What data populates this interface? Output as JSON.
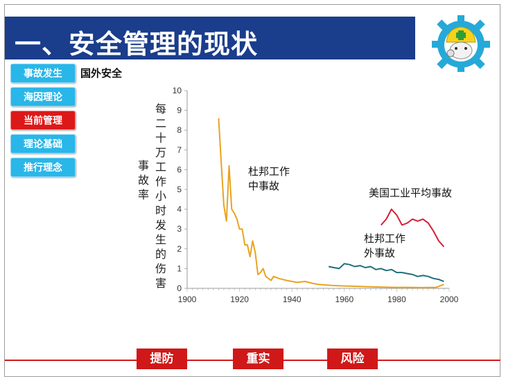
{
  "header": {
    "title": "一、安全管理的现状"
  },
  "nav": {
    "items": [
      {
        "label": "事故发生",
        "active": false
      },
      {
        "label": "海因理论",
        "active": false
      },
      {
        "label": "当前管理",
        "active": true
      },
      {
        "label": "理论基础",
        "active": false
      },
      {
        "label": "推行理念",
        "active": false
      }
    ]
  },
  "section": {
    "subtitle": "国外安全"
  },
  "colors": {
    "title_bg": "#1a3d8c",
    "nav_bg": "#29b6e8",
    "active": "#dc1818",
    "accent_red": "#d01818"
  },
  "chart_data": {
    "type": "line",
    "ylabel": "每二十万工作小时发生的伤害事故率",
    "xlabel": "",
    "xlim": [
      1900,
      2000
    ],
    "ylim": [
      0,
      10
    ],
    "xticks": [
      1900,
      1920,
      1940,
      1960,
      1980,
      2000
    ],
    "yticks": [
      0,
      1,
      2,
      3,
      4,
      5,
      6,
      7,
      8,
      9,
      10
    ],
    "grid": false,
    "series": [
      {
        "name": "杜邦工作中事故",
        "color": "#e8a320",
        "x": [
          1912,
          1913,
          1914,
          1915,
          1916,
          1917,
          1918,
          1919,
          1920,
          1921,
          1922,
          1923,
          1924,
          1925,
          1926,
          1927,
          1928,
          1929,
          1930,
          1931,
          1932,
          1933,
          1935,
          1938,
          1940,
          1942,
          1945,
          1948,
          1950,
          1955,
          1960,
          1965,
          1970,
          1975,
          1980,
          1985,
          1990,
          1995,
          1998
        ],
        "values": [
          8.6,
          6.4,
          4.2,
          3.4,
          6.2,
          4.0,
          3.8,
          3.5,
          3.0,
          3.0,
          2.2,
          2.2,
          1.6,
          2.4,
          1.8,
          0.7,
          0.8,
          1.0,
          0.6,
          0.5,
          0.4,
          0.6,
          0.5,
          0.4,
          0.35,
          0.3,
          0.35,
          0.25,
          0.2,
          0.15,
          0.12,
          0.1,
          0.08,
          0.06,
          0.05,
          0.05,
          0.04,
          0.05,
          0.2
        ]
      },
      {
        "name": "杜邦工作外事故",
        "color": "#1f6e78",
        "x": [
          1954,
          1956,
          1958,
          1960,
          1962,
          1964,
          1966,
          1968,
          1970,
          1972,
          1974,
          1976,
          1978,
          1980,
          1982,
          1984,
          1986,
          1988,
          1990,
          1992,
          1994,
          1996,
          1998
        ],
        "values": [
          1.1,
          1.05,
          1.0,
          1.25,
          1.2,
          1.1,
          1.15,
          1.05,
          1.1,
          0.95,
          1.0,
          0.9,
          0.95,
          0.8,
          0.8,
          0.75,
          0.7,
          0.6,
          0.65,
          0.6,
          0.5,
          0.45,
          0.35
        ]
      },
      {
        "name": "美国工业平均事故",
        "color": "#d52034",
        "x": [
          1974,
          1976,
          1978,
          1980,
          1982,
          1984,
          1986,
          1988,
          1990,
          1992,
          1994,
          1996,
          1998
        ],
        "values": [
          3.2,
          3.5,
          4.0,
          3.7,
          3.2,
          3.3,
          3.5,
          3.4,
          3.5,
          3.3,
          2.9,
          2.4,
          2.1
        ]
      }
    ],
    "annotations": [
      {
        "lines": [
          "杜邦工作",
          "中事故"
        ]
      },
      {
        "lines": [
          "美国工业平均事故"
        ]
      },
      {
        "lines": [
          "杜邦工作",
          "外事故"
        ]
      }
    ]
  },
  "footer": {
    "buttons": [
      "提防",
      "重实",
      "风险"
    ]
  }
}
